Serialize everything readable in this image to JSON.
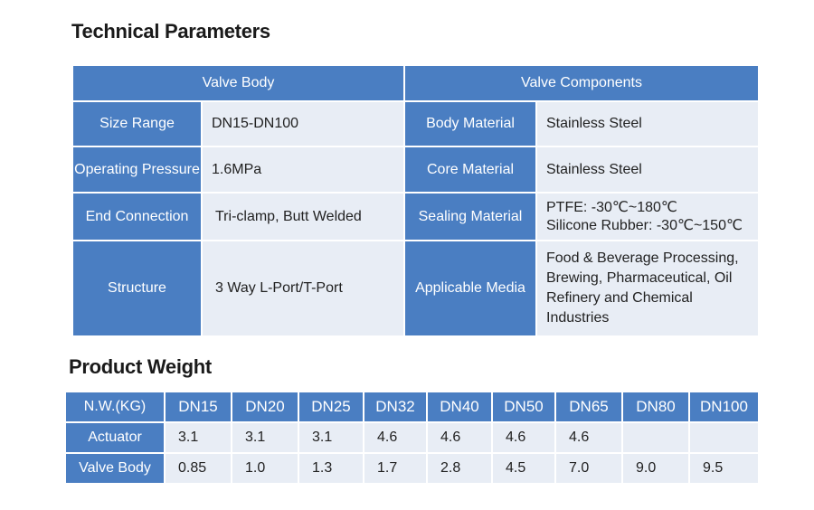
{
  "technical": {
    "title": "Technical Parameters",
    "headers": [
      "Valve Body",
      "Valve Components"
    ],
    "rows": [
      {
        "label1": "Size Range",
        "value1": "DN15-DN100",
        "label2": "Body Material",
        "value2": [
          "Stainless Steel"
        ]
      },
      {
        "label1": "Operating Pressure",
        "value1": "1.6MPa",
        "label2": "Core Material",
        "value2": [
          "Stainless Steel"
        ]
      },
      {
        "label1": "End Connection",
        "value1": "Tri-clamp, Butt Welded",
        "label2": "Sealing Material",
        "value2": [
          "PTFE:  -30℃~180℃",
          "Silicone Rubber: -30℃~150℃"
        ]
      },
      {
        "label1": "Structure",
        "value1": "3 Way L-Port/T-Port",
        "label2": "Applicable Media",
        "value2": [
          "Food & Beverage Processing,",
          "Brewing, Pharmaceutical, Oil",
          "Refinery and Chemical Industries"
        ]
      }
    ]
  },
  "weight": {
    "title": "Product Weight",
    "header_label": "N.W.(KG)",
    "sizes": [
      "DN15",
      "DN20",
      "DN25",
      "DN32",
      "DN40",
      "DN50",
      "DN65",
      "DN80",
      "DN100"
    ],
    "rows": [
      {
        "label": "Actuator",
        "values": [
          "3.1",
          "3.1",
          "3.1",
          "4.6",
          "4.6",
          "4.6",
          "4.6",
          "",
          ""
        ]
      },
      {
        "label": "Valve Body",
        "values": [
          "0.85",
          "1.0",
          "1.3",
          "1.7",
          "2.8",
          "4.5",
          "7.0",
          "9.0",
          "9.5"
        ]
      }
    ]
  }
}
